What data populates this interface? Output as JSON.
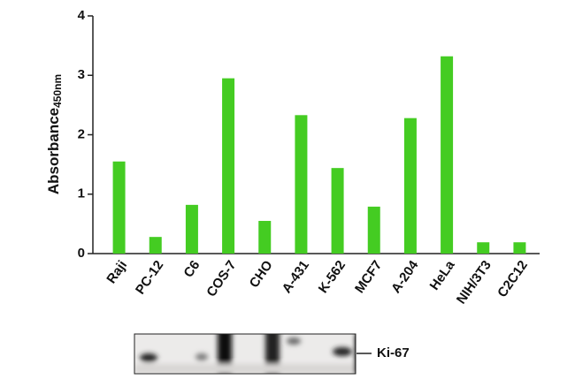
{
  "chart_data": {
    "type": "bar",
    "ylabel": "Absorbance",
    "ylabel_subscript": "450nm",
    "categories": [
      "Raji",
      "PC-12",
      "C6",
      "COS-7",
      "CHO",
      "A-431",
      "K-562",
      "MCF7",
      "A-204",
      "HeLa",
      "NIH/3T3",
      "C2C12"
    ],
    "values": [
      1.55,
      0.28,
      0.82,
      2.95,
      0.55,
      2.33,
      1.44,
      0.79,
      2.28,
      3.32,
      0.19,
      0.19
    ],
    "color": "#44cc22",
    "ylim": [
      0,
      4
    ],
    "yticks": [
      0,
      1,
      2,
      3,
      4
    ],
    "grid": false,
    "blot_label": "Ki-67"
  }
}
